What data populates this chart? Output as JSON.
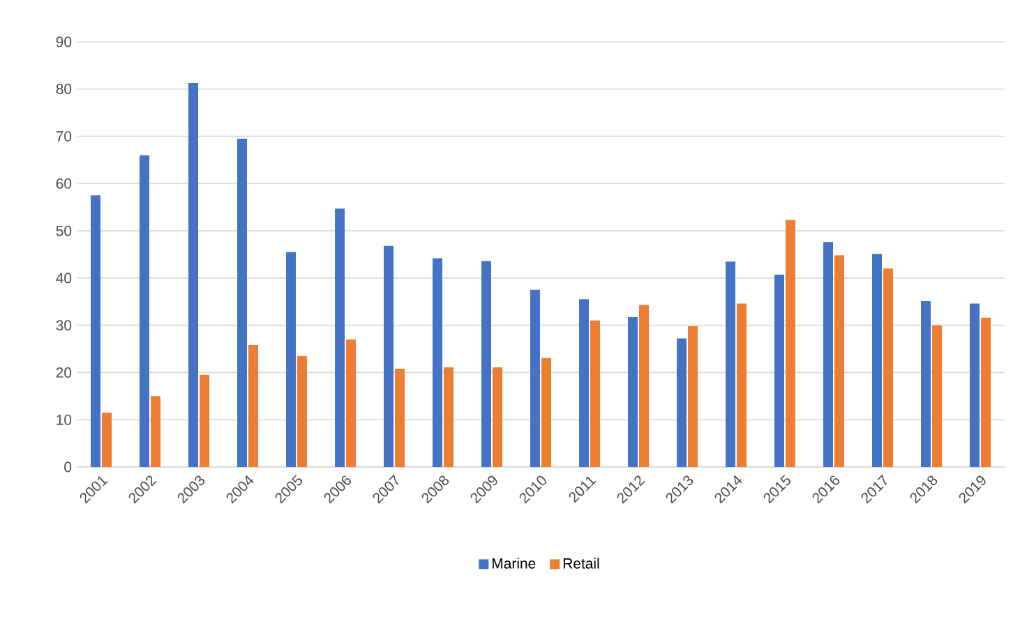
{
  "chart_data": {
    "type": "bar",
    "categories": [
      "2001",
      "2002",
      "2003",
      "2004",
      "2005",
      "2006",
      "2007",
      "2008",
      "2009",
      "2010",
      "2011",
      "2012",
      "2013",
      "2014",
      "2015",
      "2016",
      "2017",
      "2018",
      "2019"
    ],
    "series": [
      {
        "name": "Marine",
        "color": "#4472c4",
        "values": [
          57.5,
          66,
          81.3,
          69.5,
          45.5,
          54.7,
          46.8,
          44.2,
          43.6,
          37.5,
          35.5,
          31.7,
          27.2,
          43.5,
          40.7,
          47.6,
          45.1,
          35.1,
          34.6
        ]
      },
      {
        "name": "Retail",
        "color": "#ed7d31",
        "values": [
          11.5,
          15,
          19.5,
          25.8,
          23.5,
          27,
          20.8,
          21.1,
          21.1,
          23.1,
          31,
          34.3,
          29.8,
          34.6,
          52.3,
          44.8,
          42,
          30,
          31.6
        ]
      }
    ],
    "ylim": [
      0,
      90
    ],
    "yticks": [
      0,
      10,
      20,
      30,
      40,
      50,
      60,
      70,
      80,
      90
    ],
    "grid": "y",
    "legend": "bottom"
  }
}
